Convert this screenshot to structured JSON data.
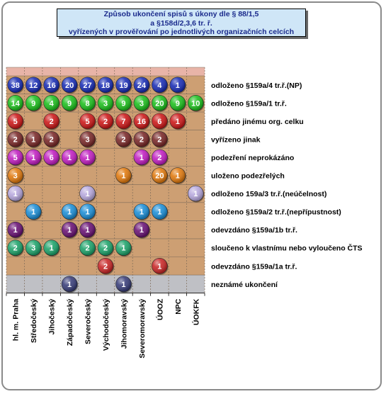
{
  "chart_data": {
    "type": "bubble-matrix",
    "title": [
      "Způsob ukončení spisů s úkony dle § 88/1,5",
      "a §158d/2,3,6  tr. ř.",
      "vyřízených v prověřování po jednotlivých organizačních celcích"
    ],
    "columns": [
      "hl. m. Praha",
      "Středočeský",
      "Jihočeský",
      "Západočeský",
      "Severočeský",
      "Východočeský",
      "Jihomoravský",
      "Severomoravský",
      "ÚOOZ",
      "NPC",
      "ÚOKFK"
    ],
    "rows": [
      {
        "label": "odloženo §159a/4 tr.ř.(NP)",
        "color": "#1c2fb5",
        "values": [
          38,
          12,
          16,
          20,
          27,
          18,
          19,
          24,
          4,
          1,
          null
        ]
      },
      {
        "label": "odloženo §159a/1 tr.ř.",
        "color": "#1fbf1f",
        "values": [
          14,
          9,
          4,
          9,
          8,
          3,
          9,
          3,
          20,
          9,
          10
        ]
      },
      {
        "label": "předáno jinému org. celku",
        "color": "#cc1a1a",
        "values": [
          5,
          null,
          2,
          null,
          5,
          2,
          7,
          16,
          6,
          1,
          null
        ]
      },
      {
        "label": "vyřízeno jinak",
        "color": "#7a2a2a",
        "values": [
          2,
          1,
          2,
          null,
          3,
          null,
          2,
          2,
          2,
          null,
          null
        ]
      },
      {
        "label": "podezření neprokázáno",
        "color": "#c020c0",
        "values": [
          5,
          1,
          6,
          1,
          1,
          null,
          null,
          1,
          2,
          null,
          null
        ]
      },
      {
        "label": "uloženo podezřelých",
        "color": "#e07a10",
        "values": [
          3,
          null,
          null,
          null,
          null,
          null,
          1,
          null,
          20,
          1,
          null
        ]
      },
      {
        "label": "odloženo 159a/3 tr.ř.(neúčelnost)",
        "color": "#b7a8dd",
        "values": [
          1,
          null,
          null,
          null,
          1,
          null,
          null,
          null,
          null,
          null,
          1
        ]
      },
      {
        "label": "odloženo §159a/2 tr.ř.(nepřípustnost)",
        "color": "#1e8fd6",
        "values": [
          null,
          1,
          null,
          1,
          1,
          null,
          null,
          1,
          1,
          null,
          null
        ]
      },
      {
        "label": "odevzdáno §159a/1b tr.ř.",
        "color": "#6a1475",
        "values": [
          1,
          null,
          null,
          1,
          1,
          null,
          null,
          1,
          null,
          null,
          null
        ]
      },
      {
        "label": "sloučeno k vlastnímu nebo vyloučeno ČTS",
        "color": "#1fa36b",
        "values": [
          2,
          3,
          1,
          null,
          2,
          2,
          1,
          null,
          null,
          null,
          null
        ]
      },
      {
        "label": "odevzdáno §159a/1a tr.ř.",
        "color": "#c82828",
        "values": [
          null,
          null,
          null,
          null,
          null,
          2,
          null,
          null,
          1,
          null,
          null
        ]
      },
      {
        "label": "neznámé ukončení",
        "color": "#3a3f7a",
        "values": [
          null,
          null,
          null,
          1,
          null,
          null,
          1,
          null,
          null,
          null,
          null
        ]
      }
    ],
    "row_background": "#cd9f73",
    "row_background_alt": "#bfc0c5"
  }
}
